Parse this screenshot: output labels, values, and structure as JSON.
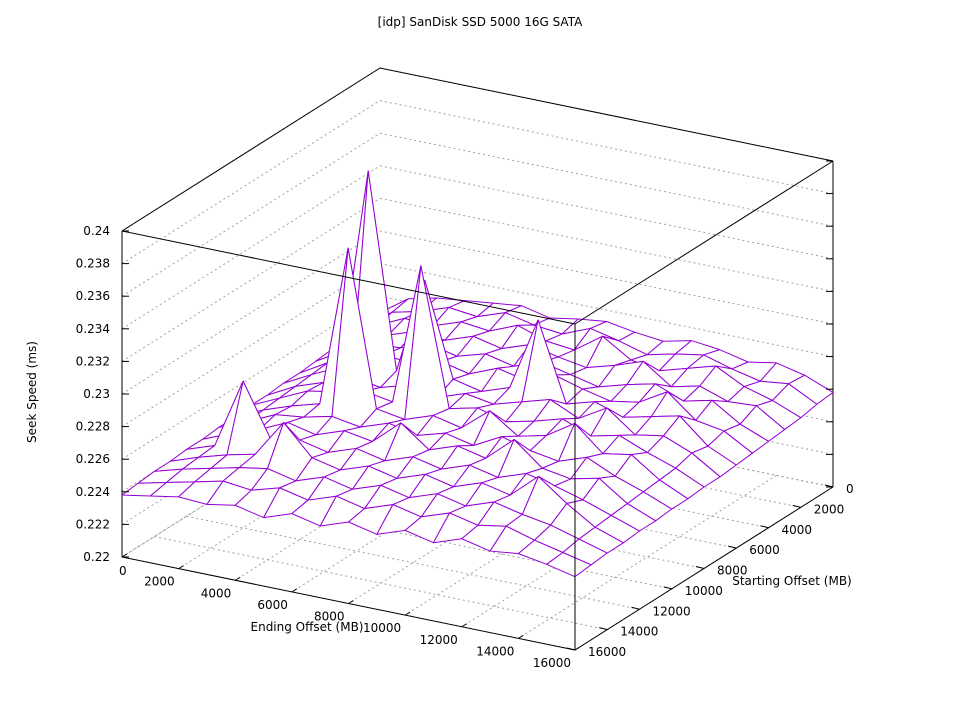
{
  "chart_data": {
    "type": "surface3d",
    "title": "[idp] SanDisk SSD 5000 16G SATA",
    "xlabel": "Ending Offset (MB)",
    "ylabel": "Starting Offset (MB)",
    "zlabel": "Seek Speed (ms)",
    "xlim": [
      0,
      16000
    ],
    "ylim": [
      0,
      16000
    ],
    "zlim": [
      0.22,
      0.24
    ],
    "x_ticks": [
      "0",
      "2000",
      "4000",
      "6000",
      "8000",
      "10000",
      "12000",
      "14000",
      "16000"
    ],
    "y_ticks": [
      "0",
      "2000",
      "4000",
      "6000",
      "8000",
      "10000",
      "12000",
      "14000",
      "16000"
    ],
    "z_ticks": [
      "0.22",
      "0.222",
      "0.224",
      "0.226",
      "0.228",
      "0.23",
      "0.232",
      "0.234",
      "0.236",
      "0.238",
      "0.24"
    ],
    "grid": true,
    "colors": {
      "surface_top": "#9400d3",
      "surface_bottom": "#009e73",
      "axis": "#000000",
      "grid": "#a0a0a0"
    },
    "x": [
      0,
      1000,
      2000,
      3000,
      4000,
      5000,
      6000,
      7000,
      8000,
      9000,
      10000,
      11000,
      12000,
      13000,
      14000,
      15000,
      16000
    ],
    "y": [
      0,
      1000,
      2000,
      3000,
      4000,
      5000,
      6000,
      7000,
      8000,
      9000,
      10000,
      11000,
      12000,
      13000,
      14000,
      15000,
      16000
    ],
    "z": [
      [
        0.225,
        0.2262,
        0.2266,
        0.2268,
        0.227,
        0.2272,
        0.2268,
        0.2271,
        0.2273,
        0.227,
        0.2268,
        0.2272,
        0.227,
        0.2266,
        0.2269,
        0.2265,
        0.2258
      ],
      [
        0.2248,
        0.226,
        0.2264,
        0.227,
        0.2268,
        0.2274,
        0.227,
        0.2268,
        0.2275,
        0.2271,
        0.2266,
        0.227,
        0.2273,
        0.2268,
        0.2264,
        0.2266,
        0.2257
      ],
      [
        0.2247,
        0.2258,
        0.2266,
        0.2265,
        0.2271,
        0.2269,
        0.2276,
        0.227,
        0.2268,
        0.228,
        0.2269,
        0.2266,
        0.2271,
        0.2276,
        0.2267,
        0.2262,
        0.2255
      ],
      [
        0.2246,
        0.2257,
        0.2262,
        0.2268,
        0.2266,
        0.2272,
        0.2268,
        0.2274,
        0.227,
        0.2267,
        0.2272,
        0.2278,
        0.2266,
        0.227,
        0.2264,
        0.2265,
        0.2254
      ],
      [
        0.2245,
        0.2255,
        0.2263,
        0.2264,
        0.227,
        0.2266,
        0.2271,
        0.2267,
        0.2273,
        0.2269,
        0.2265,
        0.227,
        0.2274,
        0.2267,
        0.2271,
        0.226,
        0.2253
      ],
      [
        0.2244,
        0.2254,
        0.226,
        0.2266,
        0.2264,
        0.2269,
        0.2265,
        0.2272,
        0.2268,
        0.2275,
        0.227,
        0.2266,
        0.2269,
        0.2279,
        0.2265,
        0.2262,
        0.2252
      ],
      [
        0.2244,
        0.2253,
        0.2261,
        0.2385,
        0.2266,
        0.2325,
        0.2268,
        0.2264,
        0.227,
        0.2315,
        0.2267,
        0.2272,
        0.2266,
        0.227,
        0.2274,
        0.2259,
        0.2251
      ],
      [
        0.2243,
        0.2252,
        0.2258,
        0.2265,
        0.2262,
        0.2267,
        0.2263,
        0.2269,
        0.2266,
        0.2271,
        0.2276,
        0.2268,
        0.2278,
        0.2265,
        0.2268,
        0.2261,
        0.225
      ],
      [
        0.2243,
        0.2251,
        0.2259,
        0.2262,
        0.2266,
        0.2263,
        0.235,
        0.2266,
        0.227,
        0.2265,
        0.2269,
        0.2274,
        0.2267,
        0.2271,
        0.2264,
        0.2258,
        0.225
      ],
      [
        0.2242,
        0.225,
        0.2256,
        0.2261,
        0.236,
        0.2265,
        0.2262,
        0.2268,
        0.2264,
        0.2278,
        0.2266,
        0.227,
        0.2281,
        0.2266,
        0.2269,
        0.2257,
        0.2249
      ],
      [
        0.2242,
        0.2249,
        0.2257,
        0.2259,
        0.2263,
        0.226,
        0.2266,
        0.2262,
        0.2267,
        0.2263,
        0.2272,
        0.2267,
        0.2264,
        0.227,
        0.2262,
        0.2256,
        0.2249
      ],
      [
        0.2241,
        0.2248,
        0.2254,
        0.2262,
        0.2258,
        0.2264,
        0.2261,
        0.2276,
        0.2263,
        0.2269,
        0.2265,
        0.228,
        0.2266,
        0.2263,
        0.2267,
        0.2255,
        0.2248
      ],
      [
        0.2241,
        0.2247,
        0.229,
        0.2257,
        0.2261,
        0.2257,
        0.2263,
        0.2259,
        0.2265,
        0.2261,
        0.2267,
        0.2263,
        0.2269,
        0.2265,
        0.226,
        0.2254,
        0.2248
      ],
      [
        0.224,
        0.2246,
        0.2251,
        0.2255,
        0.2278,
        0.226,
        0.2256,
        0.2262,
        0.2258,
        0.2264,
        0.226,
        0.2266,
        0.2262,
        0.2277,
        0.2264,
        0.2253,
        0.2247
      ],
      [
        0.224,
        0.2245,
        0.2249,
        0.2253,
        0.2256,
        0.2252,
        0.2258,
        0.2254,
        0.226,
        0.2256,
        0.2262,
        0.2258,
        0.2264,
        0.226,
        0.2257,
        0.2252,
        0.2247
      ],
      [
        0.2239,
        0.2243,
        0.2247,
        0.2251,
        0.2249,
        0.2254,
        0.225,
        0.2256,
        0.2252,
        0.2258,
        0.2254,
        0.226,
        0.2256,
        0.2259,
        0.2254,
        0.225,
        0.2246
      ],
      [
        0.2238,
        0.2241,
        0.2244,
        0.2243,
        0.2246,
        0.2242,
        0.2248,
        0.2244,
        0.225,
        0.2246,
        0.2252,
        0.2248,
        0.2254,
        0.225,
        0.2252,
        0.2249,
        0.2245
      ]
    ]
  }
}
